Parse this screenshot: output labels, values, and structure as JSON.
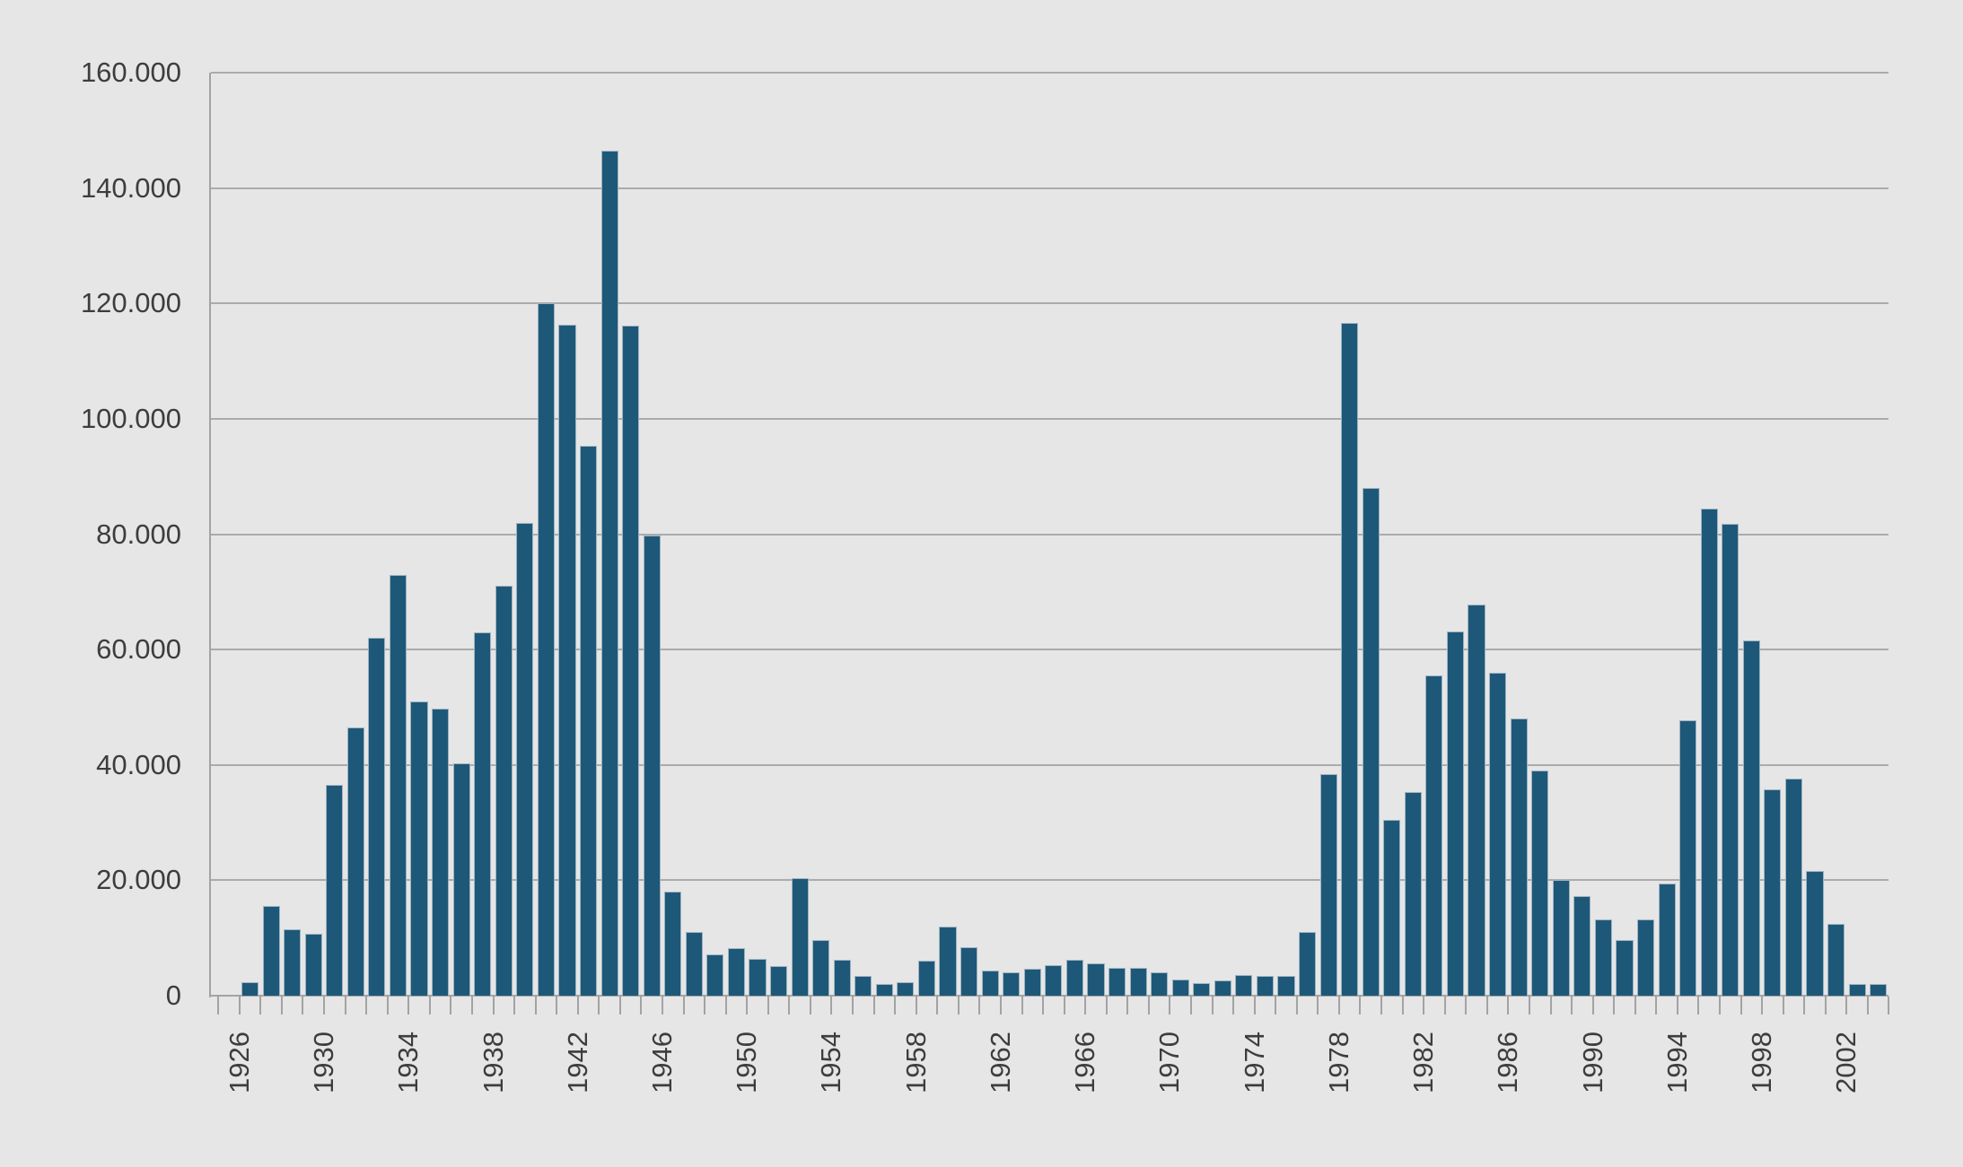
{
  "chart_data": {
    "type": "bar",
    "title": "",
    "xlabel": "",
    "ylabel": "",
    "categories": [
      1926,
      1927,
      1928,
      1929,
      1930,
      1931,
      1932,
      1933,
      1934,
      1935,
      1936,
      1937,
      1938,
      1939,
      1940,
      1941,
      1942,
      1943,
      1944,
      1945,
      1946,
      1947,
      1948,
      1949,
      1950,
      1951,
      1952,
      1953,
      1954,
      1955,
      1956,
      1957,
      1958,
      1959,
      1960,
      1961,
      1962,
      1963,
      1964,
      1965,
      1966,
      1967,
      1968,
      1969,
      1970,
      1971,
      1972,
      1973,
      1974,
      1975,
      1976,
      1977,
      1978,
      1979,
      1980,
      1981,
      1982,
      1983,
      1984,
      1985,
      1986,
      1987,
      1988,
      1989,
      1990,
      1991,
      1992,
      1993,
      1994,
      1995,
      1996,
      1997,
      1998,
      1999,
      2000,
      2001,
      2002,
      2003
    ],
    "values": [
      2300,
      15500,
      11500,
      10800,
      36500,
      46500,
      62000,
      73000,
      51000,
      49700,
      40300,
      63000,
      71000,
      82000,
      120000,
      116300,
      95300,
      146500,
      116100,
      79800,
      18000,
      11000,
      7200,
      8200,
      6400,
      5100,
      20300,
      9600,
      6200,
      3400,
      2100,
      2300,
      6100,
      12000,
      8400,
      4400,
      4100,
      4700,
      5300,
      6200,
      5600,
      4800,
      4800,
      4000,
      2800,
      2200,
      2700,
      3600,
      3500,
      3500,
      11000,
      38400,
      116600,
      88000,
      30500,
      35300,
      55500,
      63100,
      67800,
      56000,
      48100,
      39000,
      20000,
      17300,
      13200,
      9600,
      13200,
      19500,
      47700,
      84400,
      81800,
      61600,
      35800,
      37600,
      21600,
      12400,
      2000,
      2000
    ],
    "ylim": [
      0,
      160000
    ],
    "ytick_step": 20000,
    "ytick_labels": [
      "0",
      "20.000",
      "40.000",
      "60.000",
      "80.000",
      "100.000",
      "120.000",
      "140.000",
      "160.000"
    ],
    "x_axis_labeled_years": [
      1926,
      1930,
      1934,
      1938,
      1942,
      1946,
      1950,
      1954,
      1958,
      1962,
      1966,
      1970,
      1974,
      1978,
      1982,
      1986,
      1990,
      1994,
      1998,
      2002
    ],
    "legend": "none",
    "grid": "horizontal",
    "number_format": "thousands-dot-separator",
    "colors": {
      "background": "#e6e6e6",
      "bar_fill": "#1e5878",
      "bar_border": "#9db3c2",
      "gridline": "#ababab",
      "axis_line": "#a3a3a3",
      "text": "#3d3d3d"
    }
  }
}
